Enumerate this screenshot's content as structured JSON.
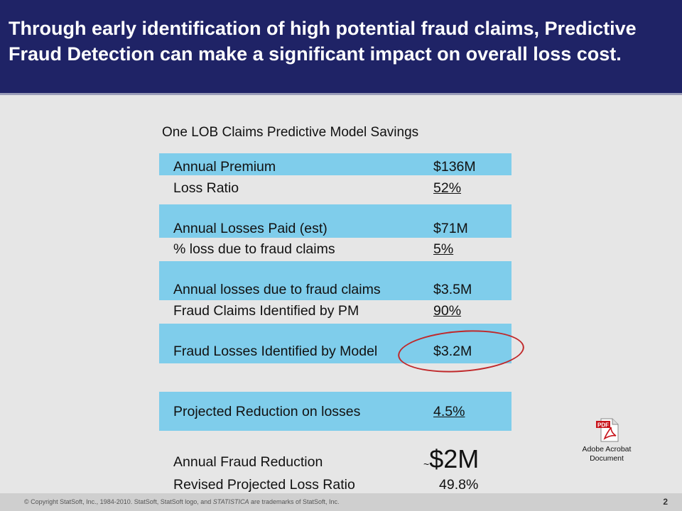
{
  "header": {
    "title": "Through early identification of high potential fraud claims, Predictive Fraud Detection can make a significant impact on overall loss cost."
  },
  "table": {
    "title": "One LOB Claims Predictive Model Savings",
    "rows": [
      {
        "label": "Annual Premium",
        "value": "$136M"
      },
      {
        "label": "Loss Ratio",
        "value": "52%"
      },
      {
        "label": "Annual Losses Paid (est)",
        "value": "$71M"
      },
      {
        "label": "% loss due to fraud claims",
        "value": "5%"
      },
      {
        "label": "Annual losses due to fraud claims",
        "value": "$3.5M"
      },
      {
        "label": "Fraud Claims Identified by PM",
        "value": "90%"
      },
      {
        "label": "Fraud Losses Identified by Model",
        "value": "$3.2M"
      },
      {
        "label": "Projected Reduction on losses",
        "value": "4.5%"
      },
      {
        "label": "Annual Fraud Reduction",
        "prefix": "~",
        "value": "$2M"
      },
      {
        "label": "Revised Projected Loss Ratio",
        "value": "49.8%"
      }
    ]
  },
  "attachment": {
    "icon": "pdf-file-icon",
    "icon_text": "PDF",
    "caption_line1": "Adobe Acrobat",
    "caption_line2": "Document",
    "color": "#c8141b"
  },
  "footer": {
    "copyright_prefix": "© Copyright StatSoft, Inc., 1984-2010. StatSoft, StatSoft logo, and ",
    "copyright_brand": "STATISTICA",
    "copyright_suffix": " are trademarks of StatSoft, Inc.",
    "page_number": "2"
  },
  "colors": {
    "header_bg": "#1f2366",
    "band": "#7fcdeb",
    "highlight_ellipse": "#c0282a"
  }
}
